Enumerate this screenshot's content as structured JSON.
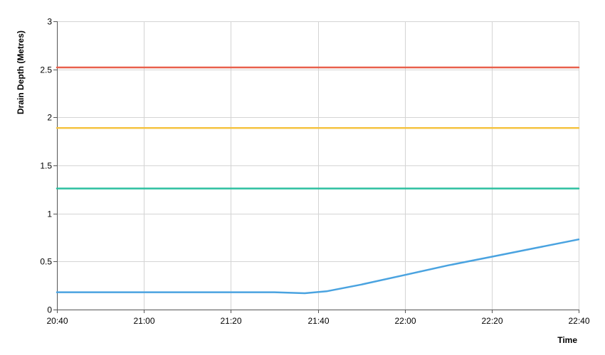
{
  "chart_data": {
    "type": "line",
    "title": "",
    "xlabel": "Time",
    "ylabel": "Drain Depth (Metres)",
    "x_ticks": [
      "20:40",
      "21:00",
      "21:20",
      "21:40",
      "22:00",
      "22:20",
      "22:40"
    ],
    "x_tick_minutes": [
      0,
      20,
      40,
      60,
      80,
      100,
      120
    ],
    "y_ticks": [
      "0",
      "0.5",
      "1",
      "1.5",
      "2",
      "2.5",
      "3"
    ],
    "xlim": [
      "20:40",
      "22:40"
    ],
    "ylim": [
      0,
      3
    ],
    "grid": true,
    "legend": "none",
    "series": [
      {
        "color": "#e8604c",
        "points": [
          [
            "20:40",
            2.52
          ],
          [
            "22:40",
            2.52
          ]
        ]
      },
      {
        "color": "#f5c342",
        "points": [
          [
            "20:40",
            1.89
          ],
          [
            "22:40",
            1.89
          ]
        ]
      },
      {
        "color": "#2bbf9f",
        "points": [
          [
            "20:40",
            1.26
          ],
          [
            "22:40",
            1.26
          ]
        ]
      },
      {
        "color": "#4aa3e0",
        "points": [
          [
            "20:40",
            0.18
          ],
          [
            "20:50",
            0.18
          ],
          [
            "21:00",
            0.18
          ],
          [
            "21:10",
            0.18
          ],
          [
            "21:20",
            0.18
          ],
          [
            "21:30",
            0.18
          ],
          [
            "21:37",
            0.17
          ],
          [
            "21:42",
            0.19
          ],
          [
            "21:50",
            0.26
          ],
          [
            "22:00",
            0.36
          ],
          [
            "22:10",
            0.46
          ],
          [
            "22:20",
            0.55
          ],
          [
            "22:30",
            0.64
          ],
          [
            "22:40",
            0.73
          ]
        ]
      }
    ]
  }
}
